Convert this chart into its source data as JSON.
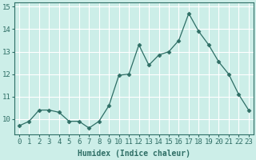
{
  "x": [
    0,
    1,
    2,
    3,
    4,
    5,
    6,
    7,
    8,
    9,
    10,
    11,
    12,
    13,
    14,
    15,
    16,
    17,
    18,
    19,
    20,
    21,
    22,
    23
  ],
  "y": [
    9.7,
    9.9,
    10.4,
    10.4,
    10.3,
    9.9,
    9.9,
    9.6,
    9.9,
    10.6,
    11.95,
    12.0,
    13.3,
    12.4,
    12.85,
    13.0,
    13.5,
    14.7,
    13.9,
    13.3,
    12.55,
    12.0,
    11.1,
    10.4
  ],
  "line_color": "#2e6e65",
  "marker": "D",
  "marker_size": 2.5,
  "bg_color": "#cceee8",
  "grid_color": "#ffffff",
  "xlabel": "Humidex (Indice chaleur)",
  "ylim": [
    9.3,
    15.2
  ],
  "xlim": [
    -0.5,
    23.5
  ],
  "yticks": [
    10,
    11,
    12,
    13,
    14,
    15
  ],
  "xticks": [
    0,
    1,
    2,
    3,
    4,
    5,
    6,
    7,
    8,
    9,
    10,
    11,
    12,
    13,
    14,
    15,
    16,
    17,
    18,
    19,
    20,
    21,
    22,
    23
  ],
  "title_fontsize": 7,
  "label_fontsize": 7,
  "tick_fontsize": 6.5,
  "spine_color": "#2e6e65",
  "tick_color": "#2e6e65"
}
